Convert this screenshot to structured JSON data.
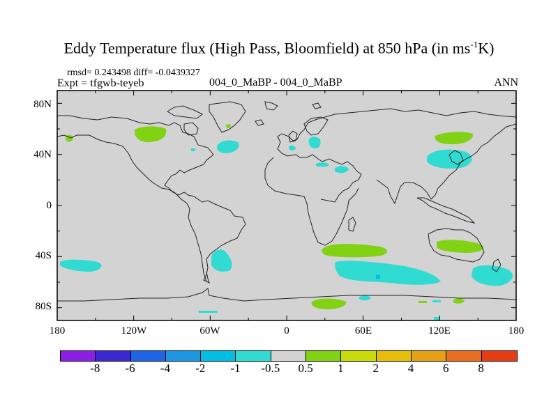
{
  "title": {
    "main": "Eddy Temperature flux (High Pass, Bloomfield) at 850 hPa (in ms",
    "sup": "-1",
    "end": "K)"
  },
  "stats": "rmsd= 0.243498 diff= -0.0439327",
  "expt": "Expt = tfgwb-teyeb",
  "cases": "004_0_MaBP - 004_0_MaBP",
  "season": "ANN",
  "y_axis": {
    "ticks": [
      "80N",
      "40N",
      "0",
      "40S",
      "80S"
    ],
    "values": [
      80,
      40,
      0,
      -40,
      -80
    ]
  },
  "x_axis": {
    "ticks": [
      "180",
      "120W",
      "60W",
      "0",
      "60E",
      "120E",
      "180"
    ],
    "values": [
      -180,
      -120,
      -60,
      0,
      60,
      120,
      180
    ]
  },
  "colorbar": {
    "colors": [
      "#8c1ee6",
      "#3c28d2",
      "#1e64e6",
      "#1e96e6",
      "#00bee6",
      "#30dcd2",
      "#d3d3d3",
      "#82d214",
      "#c8dc0a",
      "#e6be0a",
      "#e6a014",
      "#e66e1e",
      "#e63c14"
    ],
    "labels": [
      "-8",
      "-6",
      "-4",
      "-2",
      "-1",
      "-0.5",
      "0.5",
      "1",
      "2",
      "4",
      "6",
      "8"
    ]
  },
  "colors": {
    "background": "#d3d3d3",
    "positive_1": "#82d214",
    "negative_1": "#30dcd2",
    "negative_2": "#00bee6"
  }
}
